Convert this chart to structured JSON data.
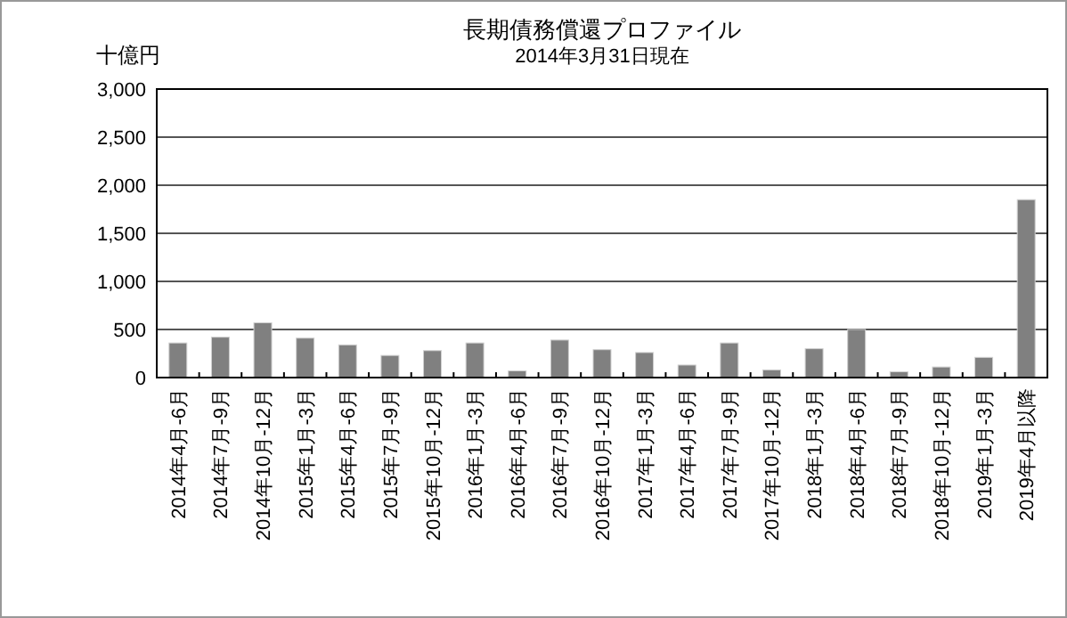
{
  "chart_data": {
    "type": "bar",
    "title": "長期債務償還プロファイル",
    "subtitle": "2014年3月31日現在",
    "ylabel": "十億円",
    "categories": [
      "2014年4月-6月",
      "2014年7月-9月",
      "2014年10月-12月",
      "2015年1月-3月",
      "2015年4月-6月",
      "2015年7月-9月",
      "2015年10月-12月",
      "2016年1月-3月",
      "2016年4月-6月",
      "2016年7月-9月",
      "2016年10月-12月",
      "2017年1月-3月",
      "2017年4月-6月",
      "2017年7月-9月",
      "2017年10月-12月",
      "2018年1月-3月",
      "2018年4月-6月",
      "2018年7月-9月",
      "2018年10月-12月",
      "2019年1月-3月",
      "2019年4月以降"
    ],
    "values": [
      360,
      420,
      570,
      410,
      340,
      230,
      280,
      360,
      70,
      390,
      290,
      260,
      130,
      360,
      80,
      300,
      500,
      60,
      110,
      210,
      1850
    ],
    "color": "#808080",
    "ylim": [
      0,
      3000
    ],
    "yticks": [
      0,
      {
        "value": 500,
        "label": "500"
      },
      {
        "value": 1000,
        "label": "1,000"
      },
      {
        "value": 1500,
        "label": "1,500"
      },
      {
        "value": 2000,
        "label": "2,000"
      },
      {
        "value": 2500,
        "label": "2,500"
      },
      {
        "value": 3000,
        "label": "3,000"
      }
    ],
    "grid": "y"
  }
}
